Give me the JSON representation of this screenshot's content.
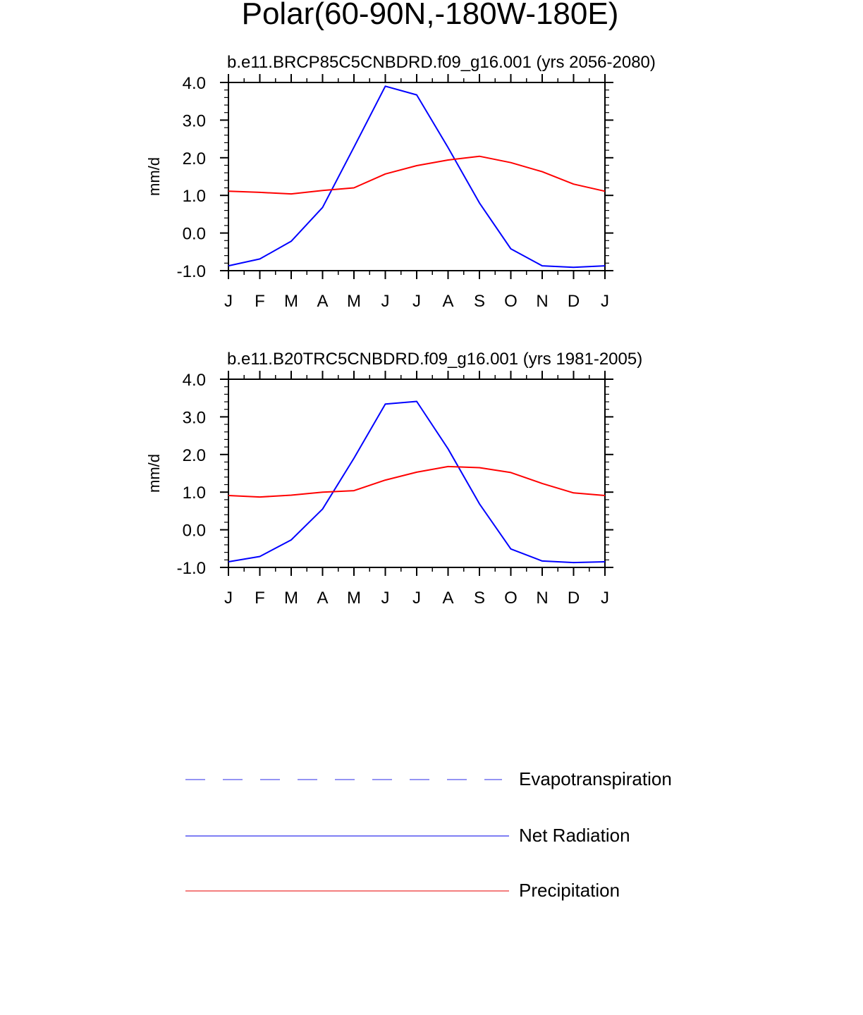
{
  "figure": {
    "title": "Polar(60-90N,-180W-180E)"
  },
  "chart_data": [
    {
      "type": "line",
      "title": "b.e11.BRCP85C5CNBDRD.f09_g16.001 (yrs 2056-2080)",
      "xlabel": "",
      "ylabel": "mm/d",
      "x_tick_labels": [
        "J",
        "F",
        "M",
        "A",
        "M",
        "J",
        "J",
        "A",
        "S",
        "O",
        "N",
        "D",
        "J"
      ],
      "y_tick_labels": [
        "4.0",
        "3.0",
        "2.0",
        "1.0",
        "0.0",
        "-1.0"
      ],
      "ylim": [
        -1.0,
        4.0
      ],
      "grid": false,
      "series": [
        {
          "name": "Net Radiation",
          "color": "#0000ff",
          "style": "solid",
          "values": [
            -0.87,
            -0.69,
            -0.22,
            0.68,
            2.28,
            3.9,
            3.67,
            2.27,
            0.8,
            -0.42,
            -0.87,
            -0.91,
            -0.87
          ]
        },
        {
          "name": "Precipitation",
          "color": "#ff0000",
          "style": "solid",
          "values": [
            1.11,
            1.08,
            1.04,
            1.13,
            1.2,
            1.57,
            1.79,
            1.94,
            2.04,
            1.87,
            1.63,
            1.3,
            1.11
          ]
        }
      ]
    },
    {
      "type": "line",
      "title": "b.e11.B20TRC5CNBDRD.f09_g16.001 (yrs 1981-2005)",
      "xlabel": "",
      "ylabel": "mm/d",
      "x_tick_labels": [
        "J",
        "F",
        "M",
        "A",
        "M",
        "J",
        "J",
        "A",
        "S",
        "O",
        "N",
        "D",
        "J"
      ],
      "y_tick_labels": [
        "4.0",
        "3.0",
        "2.0",
        "1.0",
        "0.0",
        "-1.0"
      ],
      "ylim": [
        -1.0,
        4.0
      ],
      "grid": false,
      "series": [
        {
          "name": "Net Radiation",
          "color": "#0000ff",
          "style": "solid",
          "values": [
            -0.85,
            -0.71,
            -0.27,
            0.55,
            1.9,
            3.34,
            3.41,
            2.15,
            0.69,
            -0.51,
            -0.83,
            -0.87,
            -0.85
          ]
        },
        {
          "name": "Precipitation",
          "color": "#ff0000",
          "style": "solid",
          "values": [
            0.91,
            0.87,
            0.92,
            1.0,
            1.04,
            1.32,
            1.53,
            1.68,
            1.65,
            1.52,
            1.23,
            0.98,
            0.91
          ]
        }
      ]
    }
  ],
  "legend": {
    "placement": "bottom",
    "items": [
      {
        "label": "Evapotranspiration",
        "color": "#5555ee",
        "style": "dashed"
      },
      {
        "label": "Net Radiation",
        "color": "#3333ee",
        "style": "solid"
      },
      {
        "label": "Precipitation",
        "color": "#ee3333",
        "style": "solid"
      }
    ]
  }
}
